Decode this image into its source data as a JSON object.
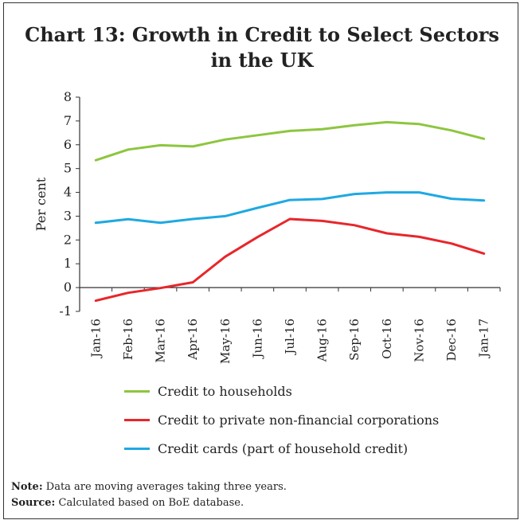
{
  "title_line1": "Chart 13: Growth in Credit to Select Sectors",
  "title_line2": "in the UK",
  "chart_data": {
    "type": "line",
    "title": "Chart 13: Growth in Credit to Select Sectors in the UK",
    "xlabel": "",
    "ylabel": "Per cent",
    "ylim": [
      -1,
      8
    ],
    "yticks": [
      -1,
      0,
      1,
      2,
      3,
      4,
      5,
      6,
      7,
      8
    ],
    "grid": false,
    "legend_position": "bottom",
    "categories": [
      "Jan-16",
      "Feb-16",
      "Mar-16",
      "Apr-16",
      "May-16",
      "Jun-16",
      "Jul-16",
      "Aug-16",
      "Sep-16",
      "Oct-16",
      "Nov-16",
      "Dec-16",
      "Jan-17"
    ],
    "series": [
      {
        "name": "Credit to households",
        "color": "#8DC63F",
        "values": [
          5.35,
          5.8,
          5.98,
          5.93,
          6.22,
          6.4,
          6.58,
          6.65,
          6.82,
          6.95,
          6.87,
          6.6,
          6.25
        ]
      },
      {
        "name": "Credit to private non-financial corporations",
        "color": "#E8262B",
        "values": [
          -0.55,
          -0.22,
          -0.02,
          0.22,
          1.3,
          2.12,
          2.88,
          2.8,
          2.62,
          2.28,
          2.13,
          1.85,
          1.43
        ]
      },
      {
        "name": "Credit cards (part of household credit)",
        "color": "#1FA9E1",
        "values": [
          2.72,
          2.87,
          2.72,
          2.88,
          3.0,
          3.35,
          3.68,
          3.72,
          3.93,
          4.0,
          4.0,
          3.73,
          3.66
        ]
      }
    ]
  },
  "notes": {
    "note_label": "Note:",
    "note_text": " Data are moving averages taking three years.",
    "source_label": "Source:",
    "source_text": " Calculated based on BoE database."
  }
}
